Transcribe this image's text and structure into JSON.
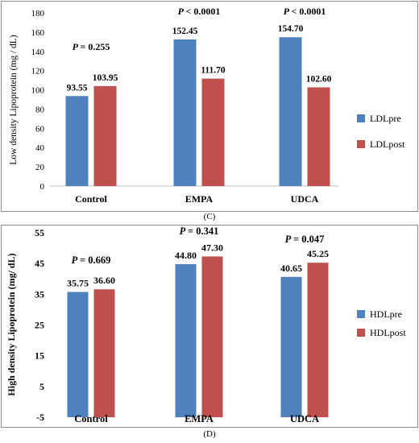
{
  "chart_data": [
    {
      "type": "bar",
      "panel_label": "(C)",
      "categories": [
        "Control",
        "EMPA",
        "UDCA"
      ],
      "series": [
        {
          "name": "LDLpre",
          "color": "#4f81bd",
          "values": [
            93.55,
            152.45,
            154.7
          ]
        },
        {
          "name": "LDLpost",
          "color": "#c0504d",
          "values": [
            103.95,
            111.7,
            102.6
          ]
        }
      ],
      "value_labels": [
        [
          "93.55",
          "152.45",
          "154.70"
        ],
        [
          "103.95",
          "111.70",
          "102.60"
        ]
      ],
      "annotations": [
        "= 0.255",
        "< 0.0001",
        "< 0.0001"
      ],
      "annotation_prefix": "P",
      "ylabel": "Low density Lipoprotein (mg / dL)",
      "ylim": [
        0,
        180
      ],
      "yticks": [
        "0",
        "20",
        "40",
        "60",
        "80",
        "100",
        "120",
        "140",
        "160",
        "180"
      ],
      "legend": "right",
      "grid": false
    },
    {
      "type": "bar",
      "panel_label": "(D)",
      "categories": [
        "Control",
        "EMPA",
        "UDCA"
      ],
      "series": [
        {
          "name": "HDLpre",
          "color": "#4f81bd",
          "values": [
            35.75,
            44.8,
            40.65
          ]
        },
        {
          "name": "HDLpost",
          "color": "#c0504d",
          "values": [
            36.6,
            47.3,
            45.25
          ]
        }
      ],
      "value_labels": [
        [
          "35.75",
          "44.80",
          "40.65"
        ],
        [
          "36.60",
          "47.30",
          "45.25"
        ]
      ],
      "annotations": [
        "= 0.669",
        "= 0.341",
        "= 0.047"
      ],
      "annotation_prefix": "P",
      "ylabel": "High density Lipoprotein (mg/ dL)",
      "ylim": [
        -5,
        55
      ],
      "yticks": [
        "-5",
        "5",
        "15",
        "25",
        "35",
        "45",
        "55"
      ],
      "legend": "right",
      "grid": false
    }
  ]
}
